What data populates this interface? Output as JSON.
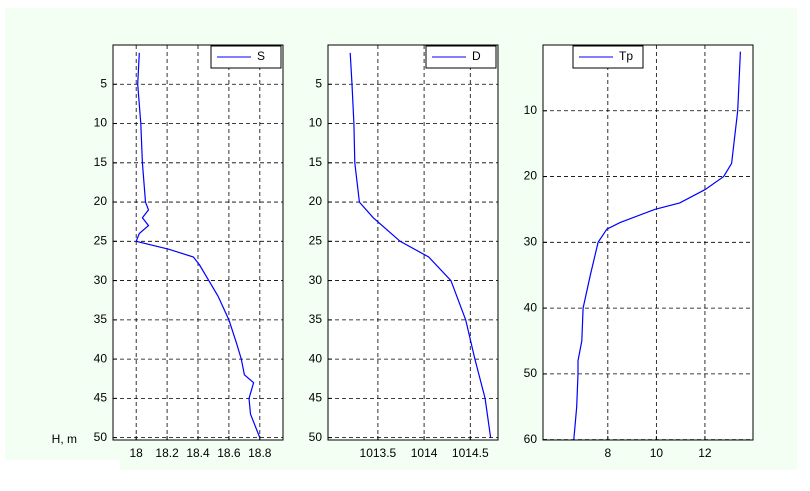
{
  "chart_data": [
    {
      "type": "line",
      "ylabel": "H, m",
      "legend": "northeast",
      "grid": true,
      "xlim": [
        17.85,
        18.95
      ],
      "ylim": [
        50.3,
        0
      ],
      "xticks": [
        18,
        18.2,
        18.4,
        18.6,
        18.8
      ],
      "yticks": [
        5,
        10,
        15,
        20,
        25,
        30,
        35,
        40,
        45,
        50
      ],
      "series": [
        {
          "name": "S",
          "color": "#0000ff",
          "x": [
            18.02,
            18.01,
            18.03,
            18.04,
            18.06,
            18.08,
            18.04,
            18.08,
            18.02,
            18.0,
            18.21,
            18.37,
            18.41,
            18.47,
            18.53,
            18.6,
            18.65,
            18.68,
            18.7,
            18.76,
            18.73,
            18.74,
            18.8
          ],
          "y": [
            1,
            5,
            10,
            15,
            20,
            21,
            22,
            23,
            24,
            25,
            26,
            27,
            28,
            30,
            32,
            35,
            38,
            40,
            42,
            43,
            45,
            47,
            50
          ]
        }
      ]
    },
    {
      "type": "line",
      "legend": "northeast",
      "grid": true,
      "xlim": [
        1012.96,
        1014.8
      ],
      "ylim": [
        50.3,
        0
      ],
      "xticks": [
        1013.5,
        1014,
        1014.5
      ],
      "yticks": [
        5,
        10,
        15,
        20,
        25,
        30,
        35,
        40,
        45,
        50
      ],
      "series": [
        {
          "name": "D",
          "color": "#0000ff",
          "x": [
            1013.2,
            1013.22,
            1013.24,
            1013.25,
            1013.3,
            1013.45,
            1013.74,
            1014.05,
            1014.29,
            1014.45,
            1014.55,
            1014.66,
            1014.72
          ],
          "y": [
            1,
            5,
            10,
            15,
            20,
            22,
            25,
            27,
            30,
            35,
            40,
            45,
            50
          ]
        }
      ]
    },
    {
      "type": "line",
      "legend": "northwest",
      "grid": true,
      "xlim": [
        5.33,
        13.98
      ],
      "ylim": [
        60.05,
        0
      ],
      "xticks": [
        8,
        10,
        12
      ],
      "yticks": [
        10,
        20,
        30,
        40,
        50,
        60
      ],
      "series": [
        {
          "name": "Tp",
          "color": "#0000ff",
          "x": [
            13.46,
            13.35,
            13.1,
            12.77,
            12.0,
            10.96,
            9.93,
            8.5,
            7.96,
            7.6,
            7.28,
            6.98,
            6.93,
            6.77,
            6.77,
            6.72,
            6.6
          ],
          "y": [
            1,
            10,
            18,
            20,
            22,
            24,
            25,
            27,
            28,
            30,
            35,
            40,
            45,
            48,
            50,
            55,
            60
          ]
        }
      ]
    }
  ]
}
